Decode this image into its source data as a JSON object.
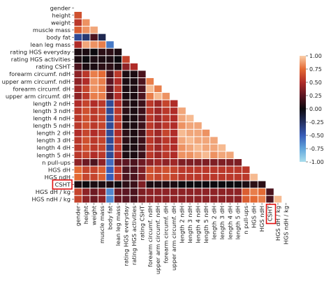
{
  "chart_data": {
    "type": "heatmap",
    "subtype": "lower-triangle correlation matrix",
    "variables": [
      "gender",
      "height",
      "weight",
      "muscle mass",
      "body fat",
      "lean leg mass",
      "rating HGS everyday",
      "rating HGS activities",
      "rating CSHT",
      "forearm circumf. ndH",
      "upper arm circumf. ndH",
      "forearm circumf. dH",
      "upper arm circumf. dH",
      "length 2 ndH",
      "length 3 ndH",
      "length 4 ndH",
      "length 5 ndH",
      "length 2 dH",
      "length 3 dH",
      "length 4 dH",
      "length 5 dH",
      "n pull-ups",
      "HGS dH",
      "HGS ndH",
      "CSHT",
      "HGS dH / kg",
      "HGS ndH / kg"
    ],
    "highlighted_variables": [
      "CSHT"
    ],
    "colorbar": {
      "range": [
        -1.0,
        1.0
      ],
      "ticks": [
        "1.00",
        "0.75",
        "0.50",
        "0.25",
        "0.00",
        "-0.25",
        "-0.50",
        "-0.75",
        "-1.00"
      ],
      "colormap": "icefire (cyan-blue -> black -> red-orange-peach)",
      "position": "right"
    },
    "values": [
      [],
      [
        0.65
      ],
      [
        0.55,
        0.85
      ],
      [
        0.7,
        0.85,
        0.9
      ],
      [
        -0.4,
        -0.3,
        0.2,
        -0.2
      ],
      [
        0.5,
        0.9,
        0.85,
        0.8,
        -0.6
      ],
      [
        0.05,
        0.05,
        0.0,
        0.1,
        0.1,
        0.05
      ],
      [
        0.05,
        0.0,
        0.05,
        0.05,
        0.05,
        0.0,
        0.6
      ],
      [
        0.2,
        0.05,
        0.05,
        0.1,
        0.1,
        0.05,
        0.4,
        0.5
      ],
      [
        0.4,
        0.55,
        0.8,
        0.75,
        0.2,
        0.55,
        0.05,
        0.05,
        0.2
      ],
      [
        0.4,
        0.5,
        0.85,
        0.8,
        0.25,
        0.5,
        0.05,
        0.05,
        0.2,
        0.8
      ],
      [
        0.45,
        0.6,
        0.85,
        0.8,
        0.25,
        0.55,
        0.05,
        0.05,
        0.2,
        0.95,
        0.8
      ],
      [
        0.4,
        0.55,
        0.8,
        0.8,
        0.2,
        0.5,
        0.05,
        0.05,
        0.2,
        0.8,
        0.95,
        0.85
      ],
      [
        0.5,
        0.6,
        0.5,
        0.55,
        -0.4,
        0.5,
        0.1,
        0.05,
        0.15,
        0.55,
        0.45,
        0.6,
        0.5
      ],
      [
        0.55,
        0.65,
        0.55,
        0.6,
        -0.4,
        0.55,
        0.1,
        0.05,
        0.15,
        0.55,
        0.45,
        0.55,
        0.5,
        0.9
      ],
      [
        0.55,
        0.65,
        0.55,
        0.6,
        -0.4,
        0.55,
        0.05,
        0.05,
        0.15,
        0.55,
        0.45,
        0.55,
        0.5,
        0.9,
        0.95
      ],
      [
        0.55,
        0.65,
        0.55,
        0.6,
        -0.4,
        0.55,
        0.05,
        0.05,
        0.15,
        0.55,
        0.45,
        0.55,
        0.5,
        0.85,
        0.9,
        0.9
      ],
      [
        0.5,
        0.6,
        0.5,
        0.55,
        -0.4,
        0.5,
        0.1,
        0.05,
        0.15,
        0.55,
        0.45,
        0.6,
        0.5,
        0.95,
        0.9,
        0.9,
        0.85
      ],
      [
        0.55,
        0.65,
        0.55,
        0.6,
        -0.4,
        0.55,
        0.1,
        0.05,
        0.15,
        0.55,
        0.45,
        0.55,
        0.5,
        0.9,
        0.95,
        0.9,
        0.9,
        0.9
      ],
      [
        0.55,
        0.65,
        0.55,
        0.6,
        -0.4,
        0.55,
        0.05,
        0.05,
        0.15,
        0.55,
        0.45,
        0.55,
        0.5,
        0.85,
        0.9,
        0.95,
        0.9,
        0.9,
        0.95
      ],
      [
        0.55,
        0.6,
        0.5,
        0.55,
        -0.4,
        0.5,
        0.05,
        0.05,
        0.15,
        0.55,
        0.45,
        0.55,
        0.5,
        0.85,
        0.85,
        0.9,
        0.95,
        0.85,
        0.9,
        0.9
      ],
      [
        0.4,
        0.3,
        0.2,
        0.4,
        -0.55,
        0.3,
        0.25,
        0.2,
        0.3,
        0.4,
        0.45,
        0.4,
        0.45,
        0.35,
        0.35,
        0.35,
        0.35,
        0.35,
        0.35,
        0.35,
        0.35
      ],
      [
        0.75,
        0.6,
        0.6,
        0.7,
        -0.5,
        0.55,
        0.2,
        0.2,
        0.35,
        0.65,
        0.6,
        0.65,
        0.6,
        0.55,
        0.55,
        0.55,
        0.55,
        0.55,
        0.55,
        0.55,
        0.55,
        0.55
      ],
      [
        0.75,
        0.6,
        0.6,
        0.7,
        -0.5,
        0.55,
        0.2,
        0.2,
        0.35,
        0.65,
        0.6,
        0.65,
        0.6,
        0.55,
        0.55,
        0.55,
        0.55,
        0.55,
        0.55,
        0.55,
        0.55,
        0.55,
        0.95
      ],
      [
        0.05,
        0.0,
        0.05,
        0.05,
        0.05,
        0.0,
        0.1,
        0.15,
        0.35,
        0.05,
        0.05,
        0.05,
        0.05,
        0.0,
        0.0,
        0.0,
        0.0,
        0.0,
        0.0,
        0.0,
        0.0,
        0.05,
        0.1,
        0.1
      ],
      [
        0.6,
        0.4,
        0.3,
        0.4,
        -0.65,
        0.3,
        0.25,
        0.2,
        0.35,
        0.4,
        0.4,
        0.4,
        0.4,
        0.4,
        0.4,
        0.4,
        0.4,
        0.4,
        0.4,
        0.4,
        0.4,
        0.7,
        0.8,
        0.75,
        0.2
      ],
      [
        0.6,
        0.4,
        0.3,
        0.4,
        -0.65,
        0.3,
        0.25,
        0.2,
        0.35,
        0.4,
        0.4,
        0.4,
        0.4,
        0.4,
        0.4,
        0.4,
        0.4,
        0.4,
        0.4,
        0.4,
        0.4,
        0.7,
        0.75,
        0.8,
        0.2,
        0.95
      ]
    ]
  }
}
